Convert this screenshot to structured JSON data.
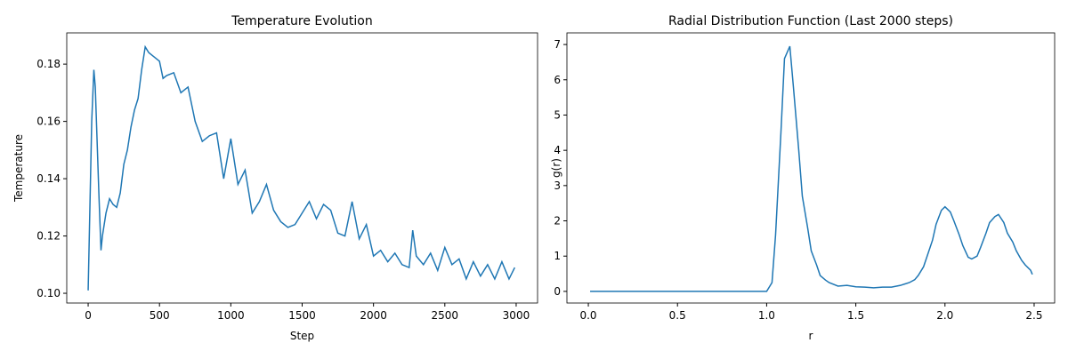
{
  "chart_data": [
    {
      "type": "line",
      "title": "Temperature Evolution",
      "x_label": "Step",
      "y_label": "Temperature",
      "x": [
        0,
        25,
        40,
        50,
        75,
        90,
        100,
        125,
        150,
        175,
        200,
        225,
        250,
        275,
        300,
        325,
        350,
        375,
        400,
        425,
        450,
        500,
        525,
        550,
        600,
        650,
        700,
        750,
        800,
        850,
        900,
        950,
        1000,
        1050,
        1100,
        1150,
        1200,
        1250,
        1300,
        1350,
        1400,
        1450,
        1500,
        1550,
        1600,
        1650,
        1700,
        1750,
        1800,
        1850,
        1900,
        1950,
        2000,
        2050,
        2100,
        2150,
        2200,
        2250,
        2275,
        2300,
        2350,
        2400,
        2450,
        2500,
        2550,
        2600,
        2650,
        2700,
        2750,
        2800,
        2850,
        2900,
        2950,
        2990
      ],
      "series": [
        {
          "name": "Temperature",
          "color": "#1f77b4",
          "values": [
            0.101,
            0.16,
            0.178,
            0.172,
            0.135,
            0.115,
            0.12,
            0.128,
            0.133,
            0.131,
            0.13,
            0.135,
            0.145,
            0.15,
            0.158,
            0.164,
            0.168,
            0.178,
            0.186,
            0.184,
            0.183,
            0.181,
            0.175,
            0.176,
            0.177,
            0.17,
            0.172,
            0.16,
            0.153,
            0.155,
            0.156,
            0.14,
            0.154,
            0.138,
            0.143,
            0.128,
            0.132,
            0.138,
            0.129,
            0.125,
            0.123,
            0.124,
            0.128,
            0.132,
            0.126,
            0.131,
            0.129,
            0.121,
            0.12,
            0.132,
            0.119,
            0.124,
            0.113,
            0.115,
            0.111,
            0.114,
            0.11,
            0.109,
            0.122,
            0.113,
            0.11,
            0.114,
            0.108,
            0.116,
            0.11,
            0.112,
            0.105,
            0.111,
            0.106,
            0.11,
            0.105,
            0.111,
            0.105,
            0.109
          ]
        }
      ],
      "xlim": [
        -150,
        3150
      ],
      "ylim": [
        0.0966,
        0.1909
      ],
      "xticks": [
        0,
        500,
        1000,
        1500,
        2000,
        2500,
        3000
      ],
      "yticks": [
        {
          "value": 0.1,
          "label": "0.10"
        },
        0.12,
        0.14,
        0.16,
        0.18
      ]
    },
    {
      "type": "line",
      "title": "Radial Distribution Function (Last 2000 steps)",
      "x_label": "r",
      "y_label": "g(r)",
      "x": [
        0.01,
        0.5,
        1.0,
        1.03,
        1.05,
        1.08,
        1.1,
        1.13,
        1.15,
        1.18,
        1.2,
        1.23,
        1.25,
        1.28,
        1.3,
        1.33,
        1.35,
        1.4,
        1.45,
        1.5,
        1.55,
        1.6,
        1.65,
        1.7,
        1.75,
        1.8,
        1.83,
        1.85,
        1.88,
        1.9,
        1.93,
        1.95,
        1.98,
        2.0,
        2.03,
        2.05,
        2.08,
        2.1,
        2.13,
        2.15,
        2.18,
        2.2,
        2.23,
        2.25,
        2.28,
        2.3,
        2.33,
        2.35,
        2.38,
        2.4,
        2.43,
        2.45,
        2.48,
        2.49
      ],
      "series": [
        {
          "name": "g(r)",
          "color": "#1f77b4",
          "values": [
            0,
            0,
            0,
            0.25,
            1.6,
            4.5,
            6.6,
            6.95,
            5.8,
            4.0,
            2.7,
            1.8,
            1.15,
            0.75,
            0.45,
            0.32,
            0.25,
            0.15,
            0.17,
            0.13,
            0.12,
            0.1,
            0.12,
            0.12,
            0.17,
            0.25,
            0.33,
            0.45,
            0.7,
            1.0,
            1.45,
            1.9,
            2.3,
            2.4,
            2.25,
            2.0,
            1.6,
            1.3,
            0.97,
            0.92,
            1.0,
            1.25,
            1.65,
            1.95,
            2.12,
            2.18,
            1.95,
            1.65,
            1.4,
            1.15,
            0.88,
            0.75,
            0.6,
            0.48
          ]
        }
      ],
      "xlim": [
        -0.12,
        2.615
      ],
      "ylim": [
        -0.33,
        7.33
      ],
      "xticks": [
        {
          "value": 0,
          "label": "0.0"
        },
        0.5,
        {
          "value": 1,
          "label": "1.0"
        },
        1.5,
        {
          "value": 2,
          "label": "2.0"
        },
        2.5
      ],
      "yticks": [
        0,
        1,
        2,
        3,
        4,
        5,
        6,
        7
      ]
    }
  ]
}
